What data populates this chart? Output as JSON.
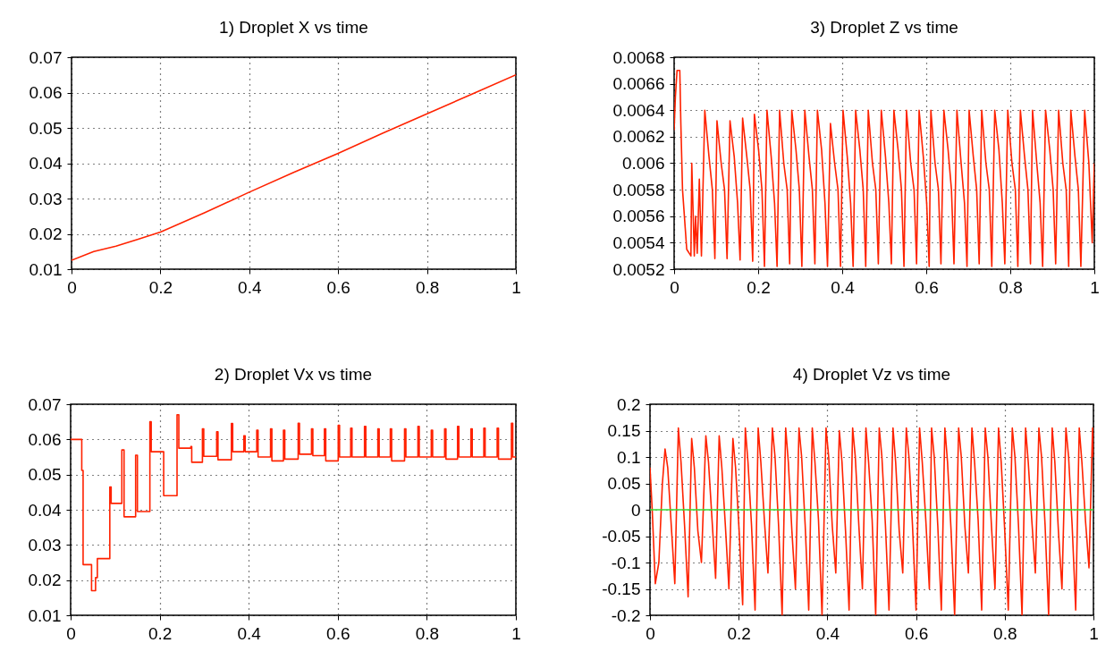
{
  "chart_data": [
    {
      "type": "line",
      "title": "1) Droplet X vs time",
      "xlim": [
        0,
        1
      ],
      "xticks": [
        0,
        0.2,
        0.4,
        0.6,
        0.8,
        1
      ],
      "ylim": [
        0.01,
        0.07
      ],
      "yticks": [
        0.01,
        0.02,
        0.03,
        0.04,
        0.05,
        0.06,
        0.07
      ],
      "grid": true,
      "series": [
        {
          "color": "#ff2200",
          "x": [
            0,
            0.05,
            0.1,
            0.15,
            0.2,
            0.3,
            0.4,
            0.5,
            0.6,
            0.7,
            0.8,
            0.9,
            1
          ],
          "values": [
            0.0125,
            0.015,
            0.0165,
            0.0185,
            0.0205,
            0.026,
            0.0318,
            0.0374,
            0.0428,
            0.0485,
            0.054,
            0.0595,
            0.065
          ]
        }
      ]
    },
    {
      "type": "line",
      "title": "3) Droplet Z vs time",
      "xlim": [
        0,
        1
      ],
      "xticks": [
        0,
        0.2,
        0.4,
        0.6,
        0.8,
        1
      ],
      "ylim": [
        0.0052,
        0.0068
      ],
      "yticks": [
        0.0052,
        0.0054,
        0.0056,
        0.0058,
        0.006,
        0.0062,
        0.0064,
        0.0066,
        0.0068
      ],
      "grid": true,
      "series": [
        {
          "color": "#ff2200",
          "x": [
            0,
            0.003,
            0.007,
            0.0135,
            0.016,
            0.02,
            0.03,
            0.04,
            0.042,
            0.048,
            0.051,
            0.055,
            0.06,
            0.065,
            0.073,
            0.083,
            0.091,
            0.097,
            0.102,
            0.112,
            0.12,
            0.126,
            0.133,
            0.143,
            0.151,
            0.157,
            0.163,
            0.173,
            0.181,
            0.187,
            0.191,
            0.201,
            0.209,
            0.215,
            0.221,
            0.231,
            0.239,
            0.245,
            0.251,
            0.261,
            0.269,
            0.275,
            0.28,
            0.29,
            0.298,
            0.304,
            0.311,
            0.321,
            0.329,
            0.335,
            0.341,
            0.351,
            0.359,
            0.365,
            0.372,
            0.382,
            0.39,
            0.396,
            0.402,
            0.412,
            0.42,
            0.426,
            0.432,
            0.442,
            0.45,
            0.456,
            0.462,
            0.472,
            0.48,
            0.486,
            0.493,
            0.503,
            0.511,
            0.517,
            0.523,
            0.533,
            0.541,
            0.547,
            0.553,
            0.563,
            0.571,
            0.577,
            0.583,
            0.593,
            0.601,
            0.607,
            0.611,
            0.621,
            0.629,
            0.635,
            0.642,
            0.652,
            0.66,
            0.666,
            0.673,
            0.683,
            0.691,
            0.697,
            0.702,
            0.712,
            0.72,
            0.726,
            0.732,
            0.742,
            0.75,
            0.756,
            0.763,
            0.773,
            0.781,
            0.787,
            0.794,
            0.804,
            0.812,
            0.818,
            0.824,
            0.834,
            0.842,
            0.848,
            0.853,
            0.863,
            0.871,
            0.877,
            0.884,
            0.894,
            0.902,
            0.908,
            0.915,
            0.925,
            0.933,
            0.939,
            0.944,
            0.954,
            0.962,
            0.968,
            0.977,
            0.987,
            0.995,
            1
          ],
          "values": [
            0.00625,
            0.0065,
            0.0067,
            0.0067,
            0.0063,
            0.0058,
            0.00535,
            0.0053,
            0.006,
            0.0053,
            0.0056,
            0.00532,
            0.00588,
            0.0053,
            0.0064,
            0.00605,
            0.0058,
            0.00528,
            0.00632,
            0.006,
            0.0058,
            0.00528,
            0.00632,
            0.00605,
            0.0057,
            0.00527,
            0.00634,
            0.00605,
            0.0058,
            0.00526,
            0.00637,
            0.0061,
            0.0058,
            0.00522,
            0.0064,
            0.00605,
            0.0057,
            0.00522,
            0.0064,
            0.006,
            0.0058,
            0.00524,
            0.0064,
            0.0061,
            0.0058,
            0.00522,
            0.0064,
            0.00605,
            0.0058,
            0.00524,
            0.0064,
            0.0061,
            0.0057,
            0.00522,
            0.0063,
            0.006,
            0.0058,
            0.00522,
            0.0064,
            0.00605,
            0.0057,
            0.00522,
            0.0064,
            0.0061,
            0.0058,
            0.00522,
            0.0064,
            0.006,
            0.0058,
            0.00524,
            0.0064,
            0.00605,
            0.0057,
            0.00524,
            0.0064,
            0.0061,
            0.0058,
            0.00522,
            0.0064,
            0.006,
            0.0058,
            0.00524,
            0.0064,
            0.00605,
            0.0057,
            0.00522,
            0.0064,
            0.006,
            0.0058,
            0.00524,
            0.0064,
            0.0061,
            0.0058,
            0.00524,
            0.0064,
            0.006,
            0.0057,
            0.00522,
            0.0064,
            0.00605,
            0.0058,
            0.00524,
            0.0064,
            0.006,
            0.0058,
            0.00522,
            0.0064,
            0.0061,
            0.0057,
            0.00524,
            0.0064,
            0.006,
            0.0058,
            0.00522,
            0.0064,
            0.00605,
            0.0058,
            0.00524,
            0.0064,
            0.006,
            0.0057,
            0.00522,
            0.0064,
            0.0061,
            0.0058,
            0.00524,
            0.0064,
            0.006,
            0.0058,
            0.00522,
            0.0064,
            0.00605,
            0.0058,
            0.00522,
            0.0064,
            0.006,
            0.0054,
            0.006
          ]
        }
      ]
    },
    {
      "type": "step",
      "title": "2) Droplet Vx vs time",
      "xlim": [
        0,
        1
      ],
      "xticks": [
        0,
        0.2,
        0.4,
        0.6,
        0.8,
        1
      ],
      "ylim": [
        0.01,
        0.07
      ],
      "yticks": [
        0.01,
        0.02,
        0.03,
        0.04,
        0.05,
        0.06,
        0.07
      ],
      "grid": true,
      "series": [
        {
          "color": "#ff2200",
          "x": [
            0,
            0.025,
            0.028,
            0.047,
            0.056,
            0.06,
            0.088,
            0.091,
            0.115,
            0.12,
            0.146,
            0.15,
            0.178,
            0.181,
            0.209,
            0.239,
            0.243,
            0.27,
            0.272,
            0.296,
            0.299,
            0.328,
            0.331,
            0.361,
            0.364,
            0.389,
            0.392,
            0.418,
            0.421,
            0.449,
            0.452,
            0.478,
            0.481,
            0.511,
            0.514,
            0.541,
            0.544,
            0.57,
            0.573,
            0.601,
            0.604,
            0.629,
            0.632,
            0.66,
            0.663,
            0.69,
            0.693,
            0.718,
            0.721,
            0.75,
            0.753,
            0.78,
            0.783,
            0.81,
            0.813,
            0.84,
            0.843,
            0.869,
            0.872,
            0.899,
            0.902,
            0.928,
            0.931,
            0.958,
            0.961,
            0.99,
            0.993,
            1
          ],
          "values": [
            0.06,
            0.0512,
            0.0244,
            0.017,
            0.0207,
            0.0261,
            0.0465,
            0.0418,
            0.057,
            0.038,
            0.0555,
            0.0395,
            0.065,
            0.0565,
            0.044,
            0.067,
            0.0575,
            0.058,
            0.0535,
            0.063,
            0.0552,
            0.0622,
            0.0542,
            0.0645,
            0.0565,
            0.061,
            0.0565,
            0.0626,
            0.055,
            0.063,
            0.0539,
            0.0626,
            0.0544,
            0.0646,
            0.0558,
            0.063,
            0.0554,
            0.063,
            0.0539,
            0.064,
            0.055,
            0.0632,
            0.055,
            0.0637,
            0.055,
            0.063,
            0.055,
            0.063,
            0.0539,
            0.063,
            0.055,
            0.0637,
            0.055,
            0.0626,
            0.055,
            0.063,
            0.0544,
            0.0637,
            0.055,
            0.063,
            0.055,
            0.0632,
            0.055,
            0.0632,
            0.0544,
            0.0646,
            0.055,
            0.055
          ]
        }
      ]
    },
    {
      "type": "line",
      "title": "4) Droplet Vz vs time",
      "xlim": [
        0,
        1
      ],
      "xticks": [
        0,
        0.2,
        0.4,
        0.6,
        0.8,
        1
      ],
      "ylim": [
        -0.2,
        0.2
      ],
      "yticks": [
        -0.2,
        -0.15,
        -0.1,
        -0.05,
        0,
        0.05,
        0.1,
        0.15,
        0.2
      ],
      "grid": true,
      "series": [
        {
          "color": "#ff2200",
          "x": [
            0,
            0.005,
            0.012,
            0.02,
            0.028,
            0.034,
            0.04,
            0.048,
            0.056,
            0.064,
            0.07,
            0.078,
            0.086,
            0.094,
            0.1,
            0.108,
            0.116,
            0.126,
            0.132,
            0.14,
            0.148,
            0.156,
            0.162,
            0.17,
            0.178,
            0.187,
            0.193,
            0.201,
            0.209,
            0.215,
            0.221,
            0.229,
            0.237,
            0.244,
            0.25,
            0.258,
            0.266,
            0.276,
            0.282,
            0.29,
            0.298,
            0.306,
            0.312,
            0.32,
            0.328,
            0.336,
            0.342,
            0.35,
            0.358,
            0.366,
            0.372,
            0.38,
            0.388,
            0.397,
            0.403,
            0.411,
            0.419,
            0.427,
            0.433,
            0.441,
            0.449,
            0.457,
            0.463,
            0.471,
            0.479,
            0.487,
            0.493,
            0.501,
            0.509,
            0.517,
            0.523,
            0.531,
            0.539,
            0.548,
            0.554,
            0.562,
            0.57,
            0.578,
            0.584,
            0.592,
            0.6,
            0.608,
            0.614,
            0.622,
            0.63,
            0.635,
            0.641,
            0.649,
            0.657,
            0.665,
            0.671,
            0.679,
            0.687,
            0.696,
            0.702,
            0.71,
            0.718,
            0.726,
            0.732,
            0.74,
            0.748,
            0.756,
            0.762,
            0.77,
            0.778,
            0.786,
            0.792,
            0.8,
            0.808,
            0.817,
            0.823,
            0.831,
            0.839,
            0.847,
            0.853,
            0.861,
            0.869,
            0.877,
            0.883,
            0.891,
            0.899,
            0.907,
            0.913,
            0.921,
            0.929,
            0.938,
            0.944,
            0.952,
            0.96,
            0.968,
            0.974,
            0.982,
            0.99,
            0.998,
            1
          ],
          "values": [
            0.08,
            0,
            -0.14,
            -0.1,
            0.05,
            0.115,
            0.08,
            -0.03,
            -0.14,
            0.155,
            0.09,
            -0.03,
            -0.165,
            0.135,
            0.08,
            -0.04,
            -0.1,
            0.14,
            0.09,
            -0.02,
            -0.13,
            0.14,
            0.08,
            -0.03,
            -0.15,
            0.135,
            0.08,
            -0.04,
            -0.18,
            0.155,
            0.09,
            -0.03,
            -0.19,
            0.155,
            0.09,
            -0.02,
            -0.12,
            0.155,
            0.1,
            -0.03,
            -0.2,
            0.155,
            0.09,
            -0.04,
            -0.15,
            0.155,
            0.1,
            -0.03,
            -0.19,
            0.155,
            0.09,
            -0.02,
            -0.2,
            0.155,
            0.1,
            -0.03,
            -0.12,
            0.15,
            0.09,
            -0.04,
            -0.19,
            0.155,
            0.1,
            -0.03,
            -0.15,
            0.155,
            0.09,
            -0.02,
            -0.2,
            0.155,
            0.1,
            -0.03,
            -0.19,
            0.155,
            0.09,
            -0.04,
            -0.12,
            0.155,
            0.1,
            -0.03,
            -0.19,
            0.155,
            0.09,
            -0.02,
            -0.15,
            0.155,
            0.1,
            -0.03,
            -0.19,
            0.155,
            0.09,
            -0.04,
            -0.2,
            0.155,
            0.1,
            -0.03,
            -0.12,
            0.155,
            0.09,
            -0.02,
            -0.19,
            0.155,
            0.1,
            -0.03,
            -0.15,
            0.155,
            0.09,
            -0.04,
            -0.19,
            0.155,
            0.1,
            -0.03,
            -0.2,
            0.155,
            0.09,
            -0.02,
            -0.12,
            0.155,
            0.1,
            -0.03,
            -0.2,
            0.155,
            0.09,
            -0.04,
            -0.15,
            0.155,
            0.1,
            -0.03,
            -0.19,
            0.155,
            0.09,
            -0.02,
            -0.11,
            0.155,
            0.1
          ]
        },
        {
          "color": "#33dd33",
          "x": [
            0,
            1
          ],
          "values": [
            0,
            0
          ]
        }
      ]
    }
  ]
}
